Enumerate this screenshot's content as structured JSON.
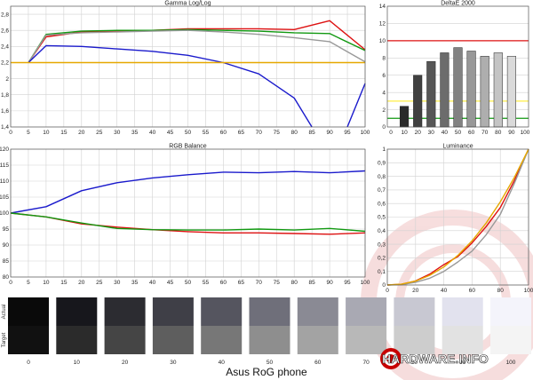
{
  "footer": {
    "title": "Asus RoG phone"
  },
  "logo": {
    "text": "HARDWARE.INFO"
  },
  "colors": {
    "red": "#dd1111",
    "green": "#119911",
    "blue": "#1a1acc",
    "gray": "#999999",
    "target": "#e6a800",
    "grid": "#d2d2d2"
  },
  "chart_data": [
    {
      "id": "gamma",
      "type": "line",
      "title": "Gamma Log/Log",
      "x": [
        10,
        20,
        30,
        40,
        50,
        60,
        70,
        80,
        90,
        100
      ],
      "xticks": [
        0,
        5,
        10,
        15,
        20,
        25,
        30,
        35,
        40,
        45,
        50,
        55,
        60,
        65,
        70,
        75,
        80,
        85,
        90,
        95,
        100
      ],
      "ylim": [
        1.4,
        2.9
      ],
      "yticks": [
        1.4,
        1.6,
        1.8,
        2,
        2.2,
        2.4,
        2.6,
        2.8
      ],
      "ytick_labels": [
        "1,4",
        "1,6",
        "1,8",
        "2",
        "2,2",
        "2,4",
        "2,6",
        "2,8"
      ],
      "series": [
        {
          "color": "red",
          "x": [
            5,
            10,
            20,
            30,
            40,
            50,
            60,
            70,
            80,
            90,
            100
          ],
          "values": [
            2.2,
            2.52,
            2.58,
            2.59,
            2.6,
            2.62,
            2.62,
            2.62,
            2.61,
            2.72,
            2.36
          ]
        },
        {
          "color": "green",
          "x": [
            5,
            10,
            20,
            30,
            40,
            50,
            60,
            70,
            80,
            90,
            100
          ],
          "values": [
            2.2,
            2.55,
            2.59,
            2.6,
            2.6,
            2.61,
            2.6,
            2.59,
            2.57,
            2.56,
            2.35
          ]
        },
        {
          "color": "gray",
          "x": [
            5,
            10,
            20,
            30,
            40,
            50,
            60,
            70,
            80,
            90,
            100
          ],
          "values": [
            2.2,
            2.54,
            2.57,
            2.58,
            2.59,
            2.6,
            2.58,
            2.55,
            2.51,
            2.46,
            2.21
          ]
        },
        {
          "color": "blue",
          "x": [
            5,
            10,
            20,
            30,
            40,
            50,
            60,
            70,
            80,
            85
          ],
          "values": [
            2.2,
            2.41,
            2.4,
            2.37,
            2.34,
            2.29,
            2.2,
            2.06,
            1.76,
            1.4
          ]
        },
        {
          "color": "blue",
          "x": [
            95,
            100
          ],
          "values": [
            1.4,
            1.94
          ]
        },
        {
          "color": "target",
          "x": [
            0,
            100
          ],
          "values": [
            2.2,
            2.2
          ]
        }
      ]
    },
    {
      "id": "deltae",
      "type": "bar",
      "title": "DeltaE 2000",
      "categories": [
        "0",
        "10",
        "20",
        "30",
        "40",
        "50",
        "60",
        "70",
        "80",
        "90",
        "100"
      ],
      "values": [
        0,
        2.4,
        6.0,
        7.6,
        8.6,
        9.2,
        8.8,
        8.2,
        8.6,
        8.2,
        0
      ],
      "ylim": [
        0,
        14
      ],
      "yticks": [
        0,
        2,
        4,
        6,
        8,
        10,
        12,
        14
      ],
      "thresholds": [
        {
          "value": 10,
          "color": "red"
        },
        {
          "value": 3,
          "color": "#ffee44"
        },
        {
          "value": 1,
          "color": "green"
        }
      ]
    },
    {
      "id": "rgb",
      "type": "line",
      "title": "RGB Balance",
      "xticks": [
        0,
        5,
        10,
        15,
        20,
        25,
        30,
        35,
        40,
        45,
        50,
        55,
        60,
        65,
        70,
        75,
        80,
        85,
        90,
        95,
        100
      ],
      "ylim": [
        80,
        120
      ],
      "yticks": [
        80,
        85,
        90,
        95,
        100,
        105,
        110,
        115,
        120
      ],
      "series": [
        {
          "color": "blue",
          "x": [
            0,
            10,
            20,
            30,
            40,
            50,
            60,
            70,
            80,
            90,
            100
          ],
          "values": [
            100,
            102,
            107,
            109.5,
            111,
            112,
            112.8,
            112.6,
            113,
            112.6,
            113.2
          ]
        },
        {
          "color": "red",
          "x": [
            0,
            10,
            20,
            30,
            40,
            50,
            60,
            70,
            80,
            90,
            100
          ],
          "values": [
            100,
            98.8,
            96.6,
            95.6,
            94.8,
            94.2,
            93.8,
            93.8,
            93.6,
            93.4,
            93.8
          ]
        },
        {
          "color": "green",
          "x": [
            0,
            10,
            20,
            30,
            40,
            50,
            60,
            70,
            80,
            90,
            100
          ],
          "values": [
            100,
            98.8,
            96.9,
            95.2,
            94.8,
            94.7,
            94.7,
            95,
            94.7,
            95.2,
            94.3
          ]
        }
      ]
    },
    {
      "id": "luminance",
      "type": "line",
      "title": "Luminance",
      "xticks": [
        0,
        20,
        40,
        60,
        80,
        100
      ],
      "ylim": [
        0,
        1
      ],
      "yticks": [
        0,
        0.1,
        0.2,
        0.3,
        0.4,
        0.5,
        0.6,
        0.7,
        0.8,
        0.9,
        1
      ],
      "ytick_labels": [
        "0",
        "0,1",
        "0,2",
        "0,3",
        "0,4",
        "0,5",
        "0,6",
        "0,7",
        "0,8",
        "0,9",
        "1"
      ],
      "series": [
        {
          "color": "red",
          "x": [
            0,
            10,
            20,
            30,
            40,
            50,
            60,
            70,
            80,
            90,
            100
          ],
          "values": [
            0,
            0.005,
            0.03,
            0.08,
            0.15,
            0.21,
            0.31,
            0.43,
            0.57,
            0.77,
            1
          ]
        },
        {
          "color": "gray",
          "x": [
            0,
            10,
            20,
            30,
            40,
            50,
            60,
            70,
            80,
            90,
            100
          ],
          "values": [
            0,
            0.003,
            0.02,
            0.05,
            0.1,
            0.17,
            0.25,
            0.37,
            0.52,
            0.75,
            1
          ]
        },
        {
          "color": "target",
          "x": [
            0,
            10,
            20,
            30,
            40,
            50,
            60,
            70,
            80,
            90,
            100
          ],
          "values": [
            0,
            0.006,
            0.029,
            0.071,
            0.133,
            0.218,
            0.325,
            0.456,
            0.612,
            0.793,
            1
          ]
        }
      ]
    }
  ],
  "swatches": {
    "row_labels": [
      "Actual",
      "Target"
    ],
    "labels": [
      "0",
      "10",
      "20",
      "30",
      "40",
      "50",
      "60",
      "70",
      "80",
      "90",
      "100"
    ],
    "actual": [
      "#0a0a0a",
      "#17171c",
      "#2c2c31",
      "#3f3f47",
      "#55555f",
      "#6f6f7a",
      "#8a8a94",
      "#a9a9b3",
      "#c8c8d2",
      "#e2e2ee",
      "#f4f4fb"
    ],
    "target": [
      "#111111",
      "#2b2b2b",
      "#454545",
      "#5e5e5e",
      "#777777",
      "#8e8e8e",
      "#a3a3a3",
      "#b8b8b8",
      "#cdcdcd",
      "#e2e2e2",
      "#f4f4f4"
    ]
  }
}
